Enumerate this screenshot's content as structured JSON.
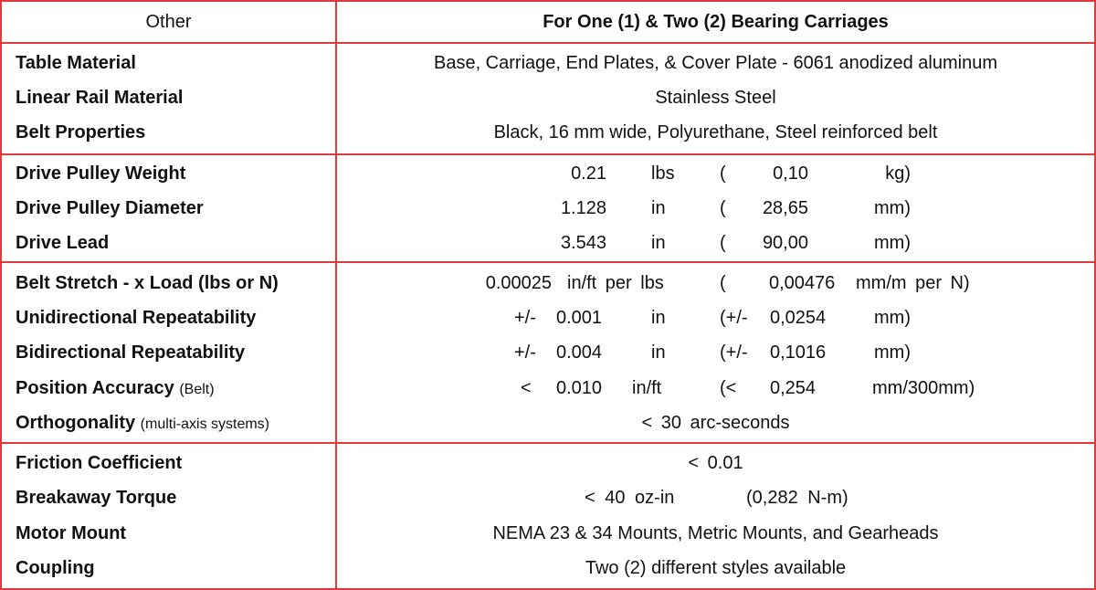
{
  "header": {
    "left": "Other",
    "right": "For One (1) & Two (2) Bearing Carriages"
  },
  "rows": {
    "table_material": {
      "label": "Table Material",
      "value": "Base, Carriage, End Plates, & Cover Plate - 6061 anodized aluminum"
    },
    "linear_rail": {
      "label": "Linear Rail Material",
      "value": "Stainless Steel"
    },
    "belt_properties": {
      "label": "Belt Properties",
      "value": "Black, 16 mm wide, Polyurethane, Steel reinforced belt"
    },
    "pulley_weight": {
      "label": "Drive Pulley Weight",
      "num": "0.21",
      "unit": "lbs",
      "open": "(",
      "metric": "0,10",
      "munit": "kg)"
    },
    "pulley_diameter": {
      "label": "Drive Pulley Diameter",
      "num": "1.128",
      "unit": "in",
      "open": "(",
      "metric": "28,65",
      "munit": "mm)"
    },
    "drive_lead": {
      "label": "Drive Lead",
      "num": "3.543",
      "unit": "in",
      "open": "(",
      "metric": "90,00",
      "munit": "mm)"
    },
    "belt_stretch": {
      "label": "Belt Stretch - x Load (lbs or N)",
      "num": "0.00025",
      "unit": "in/ft per lbs",
      "open": "(",
      "metric": "0,00476",
      "munit": "mm/m per N)"
    },
    "uni_repeat": {
      "label": "Unidirectional Repeatability",
      "prefix": "+/-",
      "num": "0.001",
      "unit": "in",
      "open": "(+/-",
      "metric": "0,0254",
      "munit": "mm)"
    },
    "bi_repeat": {
      "label": "Bidirectional Repeatability",
      "prefix": "+/-",
      "num": "0.004",
      "unit": "in",
      "open": "(+/-",
      "metric": "0,1016",
      "munit": "mm)"
    },
    "position_accuracy": {
      "label": "Position Accuracy",
      "sub": "(Belt)",
      "prefix": "<",
      "num": "0.010",
      "unit": "in/ft",
      "open": "(<",
      "metric": "0,254",
      "munit": "mm/300mm)"
    },
    "orthogonality": {
      "label": "Orthogonality",
      "sub": "(multi-axis systems)",
      "value": "< 30 arc-seconds"
    },
    "friction": {
      "label": "Friction Coefficient",
      "value": "< 0.01"
    },
    "breakaway": {
      "label": "Breakaway Torque",
      "value": "< 40 oz-in",
      "metric": "(0,282 N-m)"
    },
    "motor_mount": {
      "label": "Motor Mount",
      "value": "NEMA 23 & 34 Mounts, Metric Mounts, and Gearheads"
    },
    "coupling": {
      "label": "Coupling",
      "value": "Two (2) different styles available"
    }
  }
}
